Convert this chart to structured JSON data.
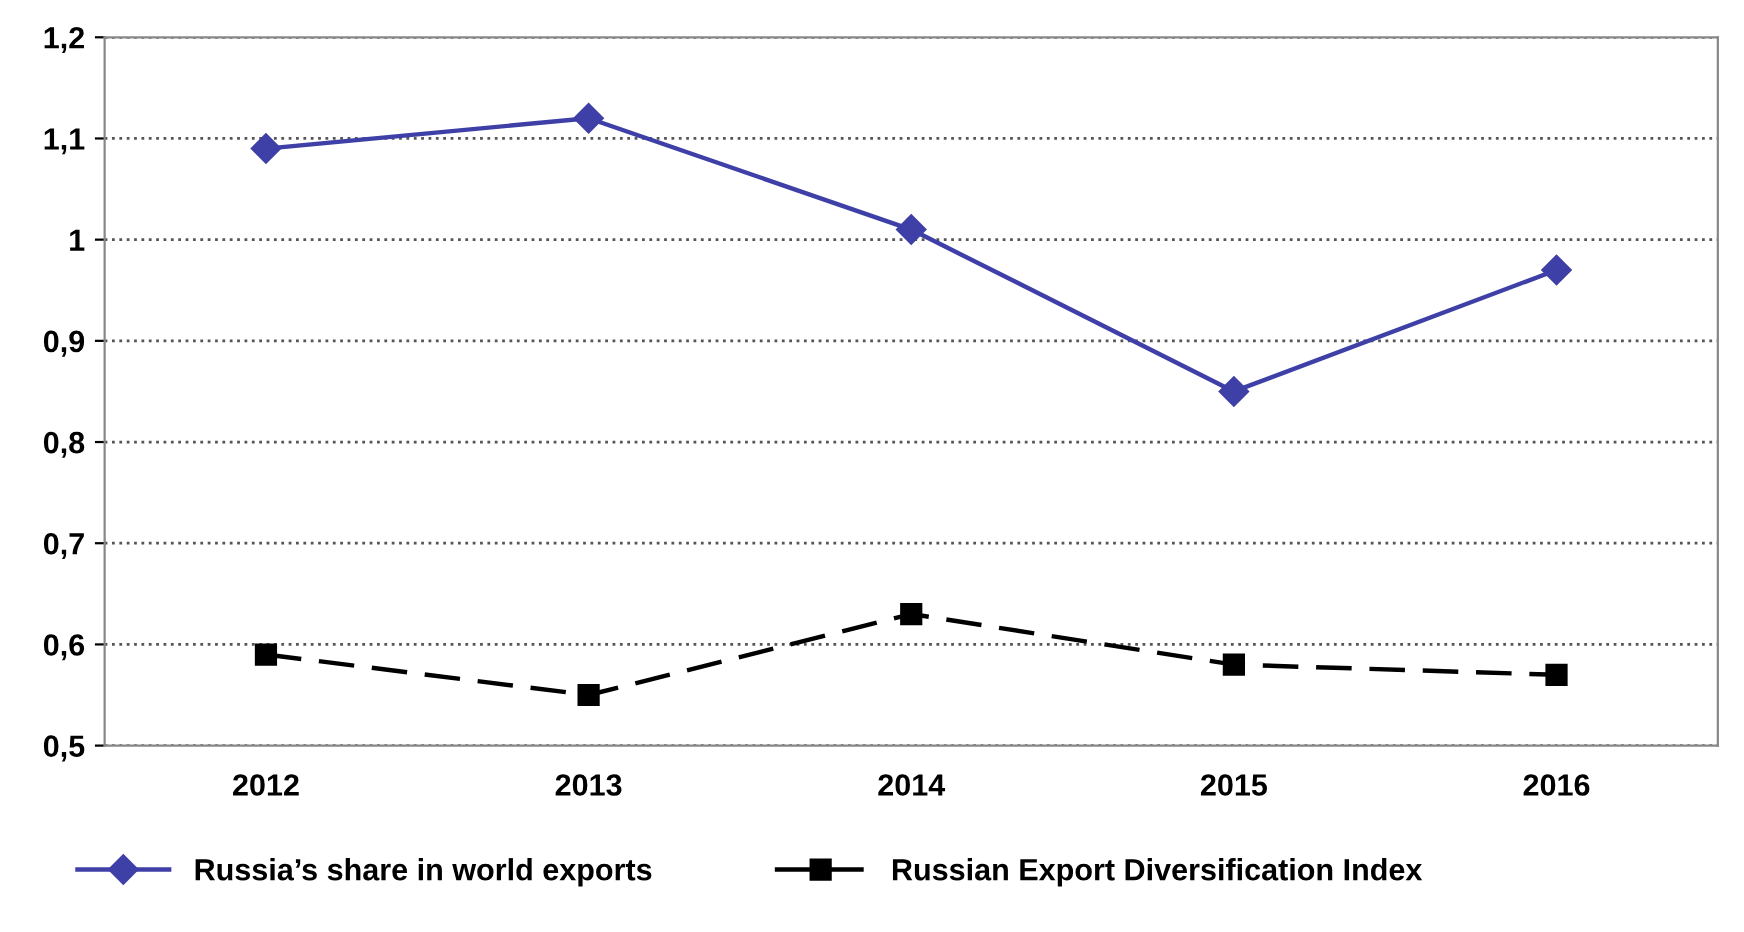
{
  "chart_data": {
    "type": "line",
    "categories": [
      "2012",
      "2013",
      "2014",
      "2015",
      "2016"
    ],
    "series": [
      {
        "name": "Russia’s share in world exports",
        "color": "#3f3fa8",
        "values": [
          1.09,
          1.12,
          1.01,
          0.85,
          0.97
        ],
        "marker": "diamond",
        "line_style": "solid"
      },
      {
        "name": "Russian Export Diversification Index",
        "color": "#000000",
        "values": [
          0.59,
          0.55,
          0.63,
          0.58,
          0.57
        ],
        "marker": "square",
        "line_style": "dashed"
      }
    ],
    "ylim": [
      0.5,
      1.2
    ],
    "yticks": [
      {
        "value": 0.5,
        "label": "0,5"
      },
      {
        "value": 0.6,
        "label": "0,6"
      },
      {
        "value": 0.7,
        "label": "0,7"
      },
      {
        "value": 0.8,
        "label": "0,8"
      },
      {
        "value": 0.9,
        "label": "0,9"
      },
      1,
      {
        "value": 1.1,
        "label": "1,1"
      },
      {
        "value": 1.2,
        "label": "1,2"
      }
    ],
    "grid": "y",
    "legend": "bottom"
  }
}
